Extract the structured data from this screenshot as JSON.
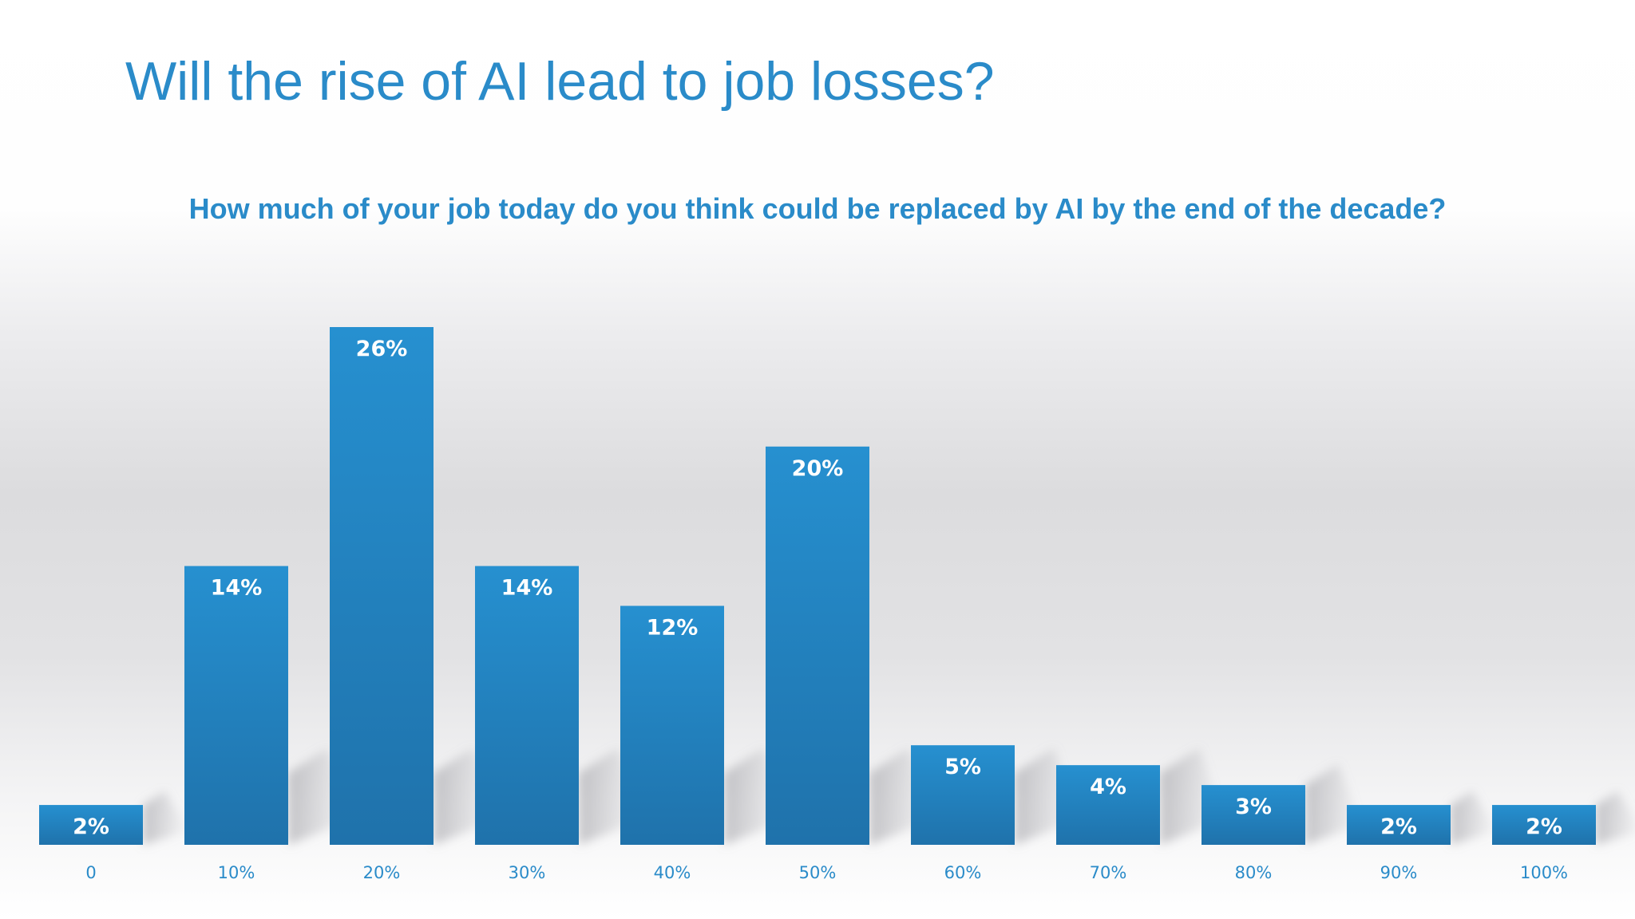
{
  "colors": {
    "accent": "#2a8bc9",
    "bar_top": "#2690d0",
    "bar_bottom": "#1f72ab",
    "label": "#ffffff"
  },
  "chart_data": {
    "type": "bar",
    "title": "Will the rise of AI lead to job losses?",
    "subtitle": "How much of your job today do you think could be replaced by AI by the end of the decade?",
    "categories": [
      "0",
      "10%",
      "20%",
      "30%",
      "40%",
      "50%",
      "60%",
      "70%",
      "80%",
      "90%",
      "100%"
    ],
    "values": [
      2,
      14,
      26,
      14,
      12,
      20,
      5,
      4,
      3,
      2,
      2
    ],
    "data_labels": [
      "2%",
      "14%",
      "26%",
      "14%",
      "12%",
      "20%",
      "5%",
      "4%",
      "3%",
      "2%",
      "2%"
    ],
    "value_unit": "%",
    "ylim": [
      0,
      26
    ],
    "grid": false,
    "legend": "none"
  }
}
